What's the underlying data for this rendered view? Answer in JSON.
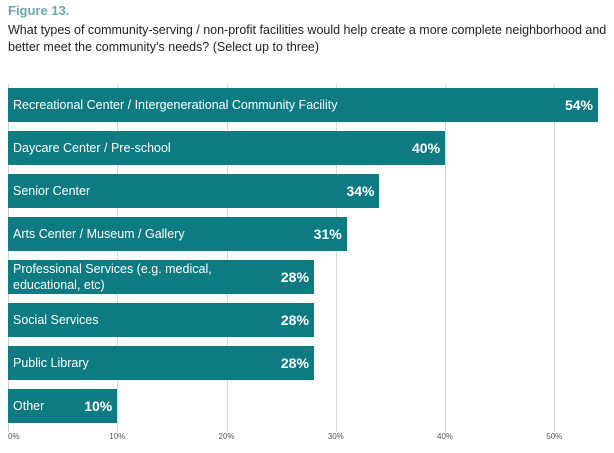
{
  "figure_label": "Figure 13.",
  "question": "What types of community-serving / non-profit facilities would help create a more complete neighborhood and better meet the community’s needs? (Select up to three)",
  "chart_data": {
    "type": "bar",
    "orientation": "horizontal",
    "title": "What types of community-serving / non-profit facilities would help create a more complete neighborhood and better meet the community’s needs? (Select up to three)",
    "categories": [
      "Recreational Center / Intergenerational Community Facility",
      "Daycare Center / Pre-school",
      "Senior Center",
      "Arts Center / Museum / Gallery",
      "Professional Services (e.g. medical, educational, etc)",
      "Social Services",
      "Public Library",
      "Other"
    ],
    "values": [
      54,
      40,
      34,
      31,
      28,
      28,
      28,
      10
    ],
    "value_labels": [
      "54%",
      "40%",
      "34%",
      "31%",
      "28%",
      "28%",
      "28%",
      "10%"
    ],
    "xlim": [
      0,
      54
    ],
    "xticks": [
      0,
      10,
      20,
      30,
      40,
      50
    ],
    "xtick_labels": [
      "0%",
      "10%",
      "20%",
      "30%",
      "40%",
      "50%"
    ],
    "xlabel": "",
    "ylabel": "",
    "color": "#0e7b83",
    "grid": true
  }
}
